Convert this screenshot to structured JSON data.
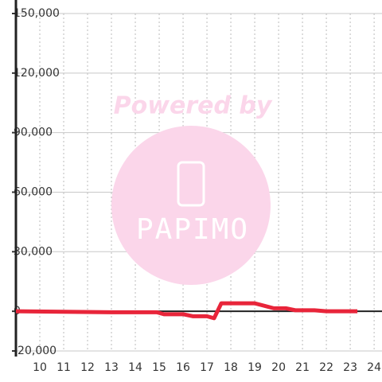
{
  "chart_data": {
    "type": "line",
    "annotations": [
      "Powered by",
      "PAPIMO"
    ],
    "x": [
      9,
      13,
      14.9,
      15.2,
      16,
      16.4,
      17,
      17.3,
      17.6,
      19,
      19.8,
      20.3,
      20.7,
      21.5,
      22,
      23.3
    ],
    "series": [
      {
        "color": "#e8253a",
        "values": [
          0,
          -500,
          -500,
          -1500,
          -1500,
          -2500,
          -2500,
          -3500,
          4000,
          4000,
          1500,
          1500,
          500,
          500,
          0,
          0
        ]
      }
    ],
    "xlim": [
      9,
      24.33
    ],
    "xticks": [
      10,
      11,
      12,
      13,
      14,
      15,
      16,
      17,
      18,
      19,
      20,
      21,
      22,
      23,
      24
    ],
    "ylim": [
      -20000,
      150000
    ],
    "yticks": [
      {
        "value": -20000,
        "label": "-20,000"
      },
      0,
      {
        "value": 30000,
        "label": "30,000"
      },
      {
        "value": 60000,
        "label": "60,000"
      },
      {
        "value": 90000,
        "label": "90,000"
      },
      {
        "value": 120000,
        "label": "120,000"
      },
      {
        "value": 150000,
        "label": "150,000"
      }
    ],
    "grid": true
  }
}
